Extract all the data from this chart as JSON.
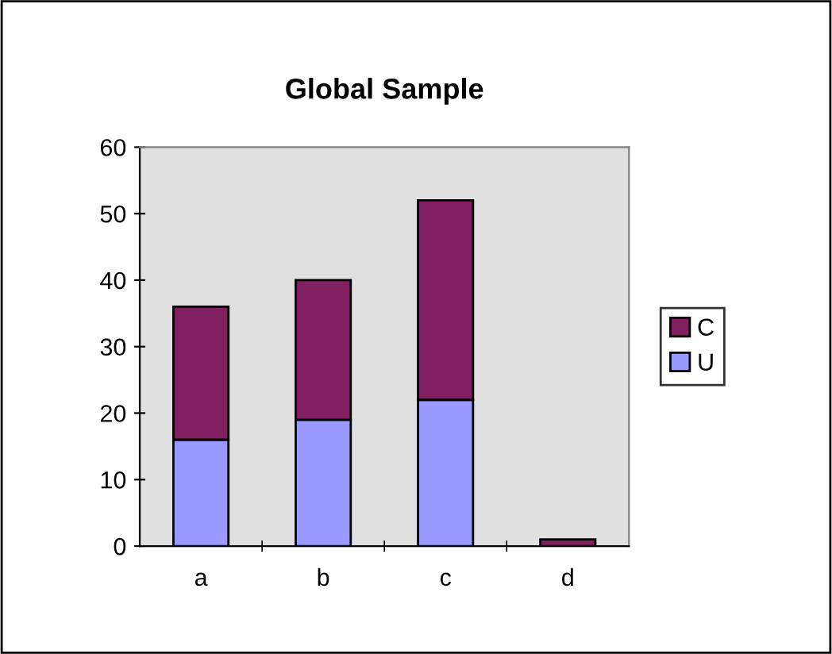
{
  "chart_data": {
    "type": "bar",
    "title": "Global Sample",
    "categories": [
      "a",
      "b",
      "c",
      "d"
    ],
    "stacked": true,
    "series": [
      {
        "name": "U",
        "color": "#9999ff",
        "values": [
          16,
          19,
          22,
          0
        ]
      },
      {
        "name": "C",
        "color": "#802060",
        "values": [
          20,
          21,
          30,
          1
        ]
      }
    ],
    "ylim": [
      0,
      60
    ],
    "yticks": [
      0,
      10,
      20,
      30,
      40,
      50,
      60
    ],
    "grid": false,
    "legend": "right"
  }
}
